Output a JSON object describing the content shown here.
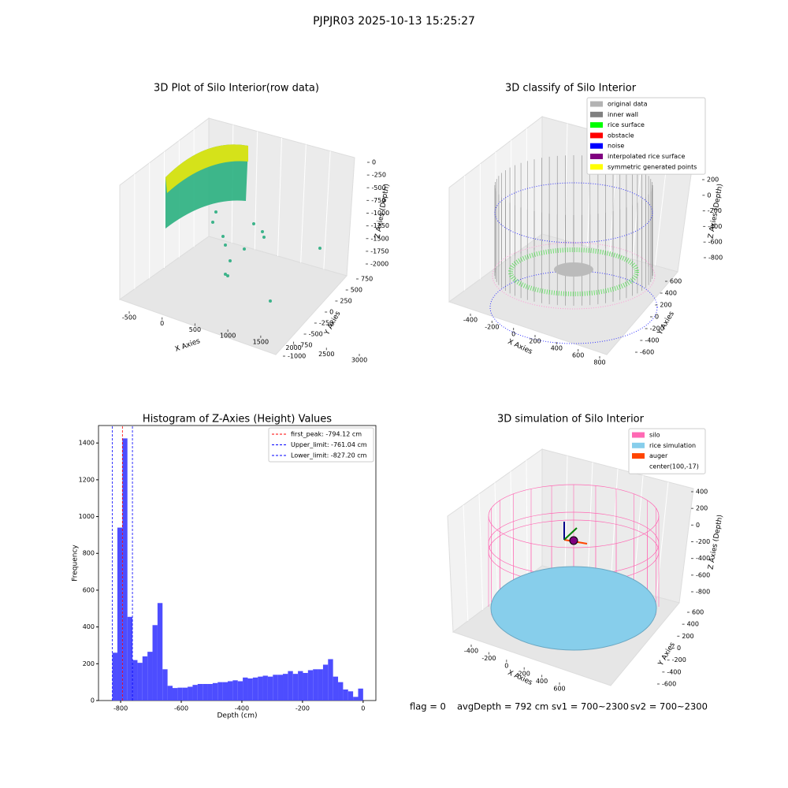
{
  "title": "PJPJR03 2025-10-13 15:25:27",
  "footer": [
    "flag = 0",
    "avgDepth = 792 cm",
    "sv1 = 700~2300",
    "sv2 = 700~2300"
  ],
  "chart_data": [
    {
      "type": "scatter3d",
      "title": "3D Plot of Silo Interior(row data)",
      "xlabel": "X Axies",
      "ylabel": "Y Axies",
      "zlabel": "Z Axies (Depth)",
      "xticks": [
        -500,
        0,
        500,
        1000,
        1500,
        2000,
        2500,
        3000
      ],
      "yticks": [
        750,
        500,
        250,
        0,
        -250,
        -500,
        -750,
        -1000
      ],
      "zticks": [
        0,
        -250,
        -500,
        -750,
        -1000,
        -1250,
        -1500,
        -1750,
        -2000
      ]
    },
    {
      "type": "scatter3d",
      "title": "3D classify of Silo Interior",
      "xlabel": "X Axies",
      "ylabel": "Y Axies",
      "zlabel": "Z Axies (Depth)",
      "xticks": [
        -400,
        -200,
        0,
        200,
        400,
        600,
        800
      ],
      "yticks": [
        600,
        400,
        200,
        0,
        -200,
        -400,
        -600
      ],
      "zticks": [
        200,
        0,
        -200,
        -400,
        -600,
        -800
      ],
      "legend": [
        {
          "name": "original data",
          "color": "#b3b3b3"
        },
        {
          "name": "inner wall",
          "color": "#808080"
        },
        {
          "name": "rice surface",
          "color": "#00ff00"
        },
        {
          "name": "obstacle",
          "color": "#ff0000"
        },
        {
          "name": "noise",
          "color": "#0000ff"
        },
        {
          "name": "interpolated rice surface",
          "color": "#800080"
        },
        {
          "name": "symmetric generated points",
          "color": "#ffff00"
        }
      ]
    },
    {
      "type": "histogram",
      "title": "Histogram of Z-Axies (Height) Values",
      "xlabel": "Depth (cm)",
      "ylabel": "Frequency",
      "color": "#4d4dff",
      "bins": [
        -827.2,
        -810.66,
        -794.11,
        -777.57,
        -761.02,
        -744.48,
        -727.94,
        -711.39,
        -694.85,
        -678.3,
        -661.76,
        -645.22,
        -628.67,
        -612.13,
        -595.58,
        -579.04,
        -562.5,
        -545.95,
        -529.41,
        -512.86,
        -496.32,
        -479.78,
        -463.23,
        -446.69,
        -430.14,
        -413.6,
        -397.06,
        -380.51,
        -363.97,
        -347.42,
        -330.88,
        -314.34,
        -297.79,
        -281.25,
        -264.7,
        -248.16,
        -231.62,
        -215.07,
        -198.53,
        -181.98,
        -165.44,
        -148.9,
        -132.35,
        -115.81,
        -99.26,
        -82.72,
        -66.18,
        -49.63,
        -33.09,
        -16.54,
        0
      ],
      "values": [
        260,
        940,
        1425,
        455,
        220,
        205,
        240,
        265,
        410,
        530,
        170,
        80,
        68,
        70,
        70,
        75,
        85,
        90,
        90,
        90,
        95,
        100,
        100,
        105,
        110,
        105,
        125,
        120,
        125,
        130,
        135,
        130,
        140,
        140,
        145,
        160,
        145,
        160,
        150,
        165,
        170,
        170,
        195,
        225,
        130,
        100,
        60,
        50,
        20,
        65
      ],
      "xlim": [
        -873,
        42
      ],
      "ylim": [
        0,
        1495
      ],
      "xticks": [
        -800,
        -600,
        -400,
        -200,
        0
      ],
      "yticks": [
        0,
        200,
        400,
        600,
        800,
        1000,
        1200,
        1400
      ],
      "vlines": [
        {
          "name": "first_peak: -794.12 cm",
          "value": -794.12,
          "color": "#ff0000"
        },
        {
          "name": "Upper_limit: -761.04 cm",
          "value": -761.04,
          "color": "#0000ff"
        },
        {
          "name": "Lower_limit: -827.20 cm",
          "value": -827.2,
          "color": "#0000ff"
        }
      ]
    },
    {
      "type": "surface3d",
      "title": "3D simulation of Silo Interior",
      "xlabel": "X Axies",
      "ylabel": "Y Axies",
      "zlabel": "Z Axies (Depth)",
      "xticks": [
        -400,
        -200,
        0,
        200,
        400,
        600
      ],
      "yticks": [
        600,
        400,
        200,
        0,
        -200,
        -400,
        -600
      ],
      "zticks": [
        400,
        200,
        0,
        -200,
        -400,
        -600,
        -800
      ],
      "legend": [
        {
          "name": "silo",
          "color": "#ff69b4"
        },
        {
          "name": "rice simulation",
          "color": "#87ceeb"
        },
        {
          "name": "auger",
          "color": "#ff4500"
        },
        {
          "name": "center(100,-17)",
          "color": null
        }
      ]
    }
  ]
}
